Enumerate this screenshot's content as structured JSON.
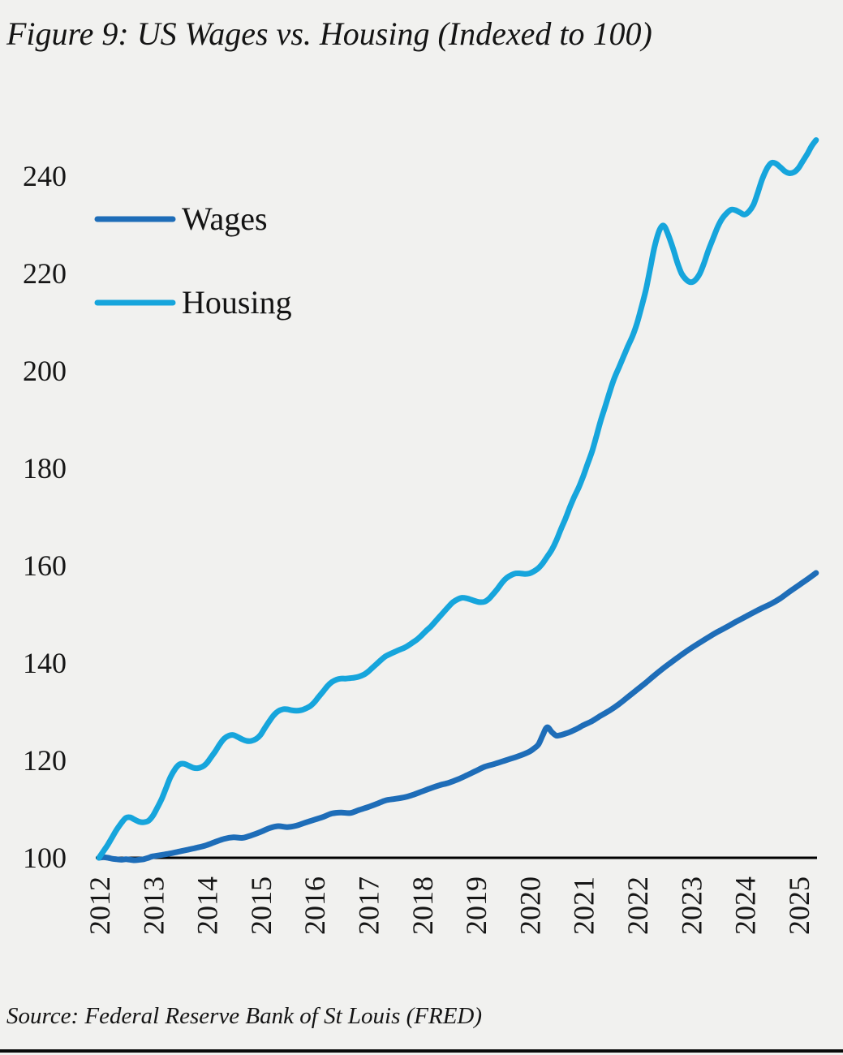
{
  "figure": {
    "title": "Figure 9: US Wages vs. Housing (Indexed to 100)",
    "source": "Source: Federal Reserve Bank of St Louis (FRED)"
  },
  "colors": {
    "background": "#f1f1ef",
    "text": "#161616",
    "axis": "#000000",
    "wages": "#1e6db8",
    "housing": "#16a5dc"
  },
  "chart_data": {
    "type": "line",
    "title": "Figure 9: US Wages vs. Housing (Indexed to 100)",
    "xlabel": "",
    "ylabel": "",
    "grid": false,
    "legend_position": "upper-left",
    "x_tick_rotation": 90,
    "xlim": [
      2012,
      2025.5
    ],
    "ylim": [
      100,
      248
    ],
    "x_tick_values": [
      2012,
      2013,
      2014,
      2015,
      2016,
      2017,
      2018,
      2019,
      2020,
      2021,
      2022,
      2023,
      2024,
      2025
    ],
    "x_tick_labels": [
      "2012",
      "2013",
      "2014",
      "2015",
      "2016",
      "2017",
      "2018",
      "2019",
      "2020",
      "2021",
      "2022",
      "2023",
      "2024",
      "2025"
    ],
    "y_tick_values": [
      100,
      120,
      140,
      160,
      180,
      200,
      220,
      240
    ],
    "series": [
      {
        "name": "Wages",
        "color": "#1e6db8",
        "points": [
          [
            2012.0,
            100.0
          ],
          [
            2012.08,
            100.1
          ],
          [
            2012.17,
            100.0
          ],
          [
            2012.25,
            99.8
          ],
          [
            2012.33,
            99.7
          ],
          [
            2012.42,
            99.6
          ],
          [
            2012.5,
            99.7
          ],
          [
            2012.58,
            99.6
          ],
          [
            2012.67,
            99.5
          ],
          [
            2012.75,
            99.6
          ],
          [
            2012.83,
            99.7
          ],
          [
            2012.92,
            100.0
          ],
          [
            2013.0,
            100.3
          ],
          [
            2013.17,
            100.6
          ],
          [
            2013.33,
            100.9
          ],
          [
            2013.5,
            101.3
          ],
          [
            2013.67,
            101.7
          ],
          [
            2013.83,
            102.1
          ],
          [
            2014.0,
            102.6
          ],
          [
            2014.17,
            103.3
          ],
          [
            2014.33,
            103.9
          ],
          [
            2014.5,
            104.2
          ],
          [
            2014.67,
            104.1
          ],
          [
            2014.83,
            104.6
          ],
          [
            2015.0,
            105.3
          ],
          [
            2015.17,
            106.1
          ],
          [
            2015.33,
            106.5
          ],
          [
            2015.5,
            106.3
          ],
          [
            2015.67,
            106.6
          ],
          [
            2015.83,
            107.2
          ],
          [
            2016.0,
            107.8
          ],
          [
            2016.17,
            108.4
          ],
          [
            2016.33,
            109.1
          ],
          [
            2016.5,
            109.3
          ],
          [
            2016.67,
            109.2
          ],
          [
            2016.83,
            109.8
          ],
          [
            2017.0,
            110.4
          ],
          [
            2017.17,
            111.1
          ],
          [
            2017.33,
            111.8
          ],
          [
            2017.5,
            112.1
          ],
          [
            2017.67,
            112.4
          ],
          [
            2017.83,
            112.9
          ],
          [
            2018.0,
            113.6
          ],
          [
            2018.17,
            114.3
          ],
          [
            2018.33,
            114.9
          ],
          [
            2018.5,
            115.4
          ],
          [
            2018.67,
            116.1
          ],
          [
            2018.83,
            116.9
          ],
          [
            2019.0,
            117.8
          ],
          [
            2019.17,
            118.7
          ],
          [
            2019.33,
            119.2
          ],
          [
            2019.5,
            119.8
          ],
          [
            2019.67,
            120.4
          ],
          [
            2019.83,
            121.0
          ],
          [
            2020.0,
            121.8
          ],
          [
            2020.08,
            122.4
          ],
          [
            2020.17,
            123.3
          ],
          [
            2020.25,
            125.2
          ],
          [
            2020.33,
            126.8
          ],
          [
            2020.42,
            125.8
          ],
          [
            2020.5,
            125.1
          ],
          [
            2020.58,
            125.2
          ],
          [
            2020.67,
            125.5
          ],
          [
            2020.75,
            125.8
          ],
          [
            2020.83,
            126.2
          ],
          [
            2020.92,
            126.7
          ],
          [
            2021.0,
            127.2
          ],
          [
            2021.17,
            128.1
          ],
          [
            2021.33,
            129.2
          ],
          [
            2021.5,
            130.3
          ],
          [
            2021.67,
            131.6
          ],
          [
            2021.83,
            133.0
          ],
          [
            2022.0,
            134.5
          ],
          [
            2022.17,
            136.0
          ],
          [
            2022.33,
            137.5
          ],
          [
            2022.5,
            139.0
          ],
          [
            2022.67,
            140.4
          ],
          [
            2022.83,
            141.7
          ],
          [
            2023.0,
            143.0
          ],
          [
            2023.17,
            144.2
          ],
          [
            2023.33,
            145.3
          ],
          [
            2023.5,
            146.4
          ],
          [
            2023.67,
            147.4
          ],
          [
            2023.83,
            148.4
          ],
          [
            2024.0,
            149.4
          ],
          [
            2024.17,
            150.4
          ],
          [
            2024.33,
            151.3
          ],
          [
            2024.5,
            152.2
          ],
          [
            2024.67,
            153.3
          ],
          [
            2024.83,
            154.6
          ],
          [
            2025.0,
            155.9
          ],
          [
            2025.17,
            157.2
          ],
          [
            2025.33,
            158.5
          ]
        ]
      },
      {
        "name": "Housing",
        "color": "#16a5dc",
        "points": [
          [
            2012.0,
            100.0
          ],
          [
            2012.08,
            101.3
          ],
          [
            2012.17,
            102.8
          ],
          [
            2012.25,
            104.3
          ],
          [
            2012.33,
            105.8
          ],
          [
            2012.42,
            107.2
          ],
          [
            2012.5,
            108.2
          ],
          [
            2012.58,
            108.3
          ],
          [
            2012.67,
            107.8
          ],
          [
            2012.75,
            107.4
          ],
          [
            2012.83,
            107.3
          ],
          [
            2012.92,
            107.6
          ],
          [
            2013.0,
            108.6
          ],
          [
            2013.08,
            110.2
          ],
          [
            2013.17,
            112.2
          ],
          [
            2013.25,
            114.4
          ],
          [
            2013.33,
            116.6
          ],
          [
            2013.42,
            118.3
          ],
          [
            2013.5,
            119.2
          ],
          [
            2013.58,
            119.3
          ],
          [
            2013.67,
            118.9
          ],
          [
            2013.75,
            118.5
          ],
          [
            2013.83,
            118.4
          ],
          [
            2013.92,
            118.7
          ],
          [
            2014.0,
            119.4
          ],
          [
            2014.08,
            120.6
          ],
          [
            2014.17,
            122.0
          ],
          [
            2014.25,
            123.4
          ],
          [
            2014.33,
            124.5
          ],
          [
            2014.42,
            125.1
          ],
          [
            2014.5,
            125.2
          ],
          [
            2014.58,
            124.8
          ],
          [
            2014.67,
            124.3
          ],
          [
            2014.75,
            124.0
          ],
          [
            2014.83,
            124.0
          ],
          [
            2014.92,
            124.4
          ],
          [
            2015.0,
            125.2
          ],
          [
            2015.08,
            126.6
          ],
          [
            2015.17,
            128.1
          ],
          [
            2015.25,
            129.3
          ],
          [
            2015.33,
            130.1
          ],
          [
            2015.42,
            130.5
          ],
          [
            2015.5,
            130.5
          ],
          [
            2015.58,
            130.3
          ],
          [
            2015.67,
            130.2
          ],
          [
            2015.75,
            130.3
          ],
          [
            2015.83,
            130.6
          ],
          [
            2015.92,
            131.1
          ],
          [
            2016.0,
            131.9
          ],
          [
            2016.08,
            133.0
          ],
          [
            2016.17,
            134.2
          ],
          [
            2016.25,
            135.3
          ],
          [
            2016.33,
            136.1
          ],
          [
            2016.42,
            136.6
          ],
          [
            2016.5,
            136.8
          ],
          [
            2016.58,
            136.8
          ],
          [
            2016.67,
            136.9
          ],
          [
            2016.75,
            137.0
          ],
          [
            2016.83,
            137.2
          ],
          [
            2016.92,
            137.6
          ],
          [
            2017.0,
            138.2
          ],
          [
            2017.08,
            139.0
          ],
          [
            2017.17,
            139.9
          ],
          [
            2017.25,
            140.7
          ],
          [
            2017.33,
            141.4
          ],
          [
            2017.42,
            141.9
          ],
          [
            2017.5,
            142.3
          ],
          [
            2017.58,
            142.7
          ],
          [
            2017.67,
            143.1
          ],
          [
            2017.75,
            143.6
          ],
          [
            2017.83,
            144.2
          ],
          [
            2017.92,
            144.9
          ],
          [
            2018.0,
            145.7
          ],
          [
            2018.08,
            146.6
          ],
          [
            2018.17,
            147.5
          ],
          [
            2018.25,
            148.5
          ],
          [
            2018.33,
            149.5
          ],
          [
            2018.42,
            150.6
          ],
          [
            2018.5,
            151.6
          ],
          [
            2018.58,
            152.5
          ],
          [
            2018.67,
            153.1
          ],
          [
            2018.75,
            153.4
          ],
          [
            2018.83,
            153.3
          ],
          [
            2018.92,
            153.0
          ],
          [
            2019.0,
            152.7
          ],
          [
            2019.08,
            152.5
          ],
          [
            2019.17,
            152.6
          ],
          [
            2019.25,
            153.2
          ],
          [
            2019.33,
            154.2
          ],
          [
            2019.42,
            155.4
          ],
          [
            2019.5,
            156.6
          ],
          [
            2019.58,
            157.5
          ],
          [
            2019.67,
            158.1
          ],
          [
            2019.75,
            158.4
          ],
          [
            2019.83,
            158.4
          ],
          [
            2019.92,
            158.3
          ],
          [
            2020.0,
            158.4
          ],
          [
            2020.08,
            158.8
          ],
          [
            2020.17,
            159.5
          ],
          [
            2020.25,
            160.5
          ],
          [
            2020.33,
            161.8
          ],
          [
            2020.42,
            163.3
          ],
          [
            2020.5,
            165.1
          ],
          [
            2020.58,
            167.3
          ],
          [
            2020.67,
            169.6
          ],
          [
            2020.75,
            171.9
          ],
          [
            2020.83,
            174.0
          ],
          [
            2020.92,
            176.1
          ],
          [
            2021.0,
            178.3
          ],
          [
            2021.08,
            180.8
          ],
          [
            2021.17,
            183.6
          ],
          [
            2021.25,
            186.7
          ],
          [
            2021.33,
            189.9
          ],
          [
            2021.42,
            193.0
          ],
          [
            2021.5,
            195.9
          ],
          [
            2021.58,
            198.5
          ],
          [
            2021.67,
            200.8
          ],
          [
            2021.75,
            202.9
          ],
          [
            2021.83,
            205.0
          ],
          [
            2021.92,
            207.2
          ],
          [
            2022.0,
            209.7
          ],
          [
            2022.08,
            212.9
          ],
          [
            2022.17,
            216.8
          ],
          [
            2022.25,
            221.2
          ],
          [
            2022.33,
            225.6
          ],
          [
            2022.42,
            228.9
          ],
          [
            2022.5,
            229.8
          ],
          [
            2022.58,
            228.0
          ],
          [
            2022.67,
            225.2
          ],
          [
            2022.75,
            222.3
          ],
          [
            2022.83,
            220.0
          ],
          [
            2022.92,
            218.7
          ],
          [
            2023.0,
            218.2
          ],
          [
            2023.08,
            218.6
          ],
          [
            2023.17,
            220.0
          ],
          [
            2023.25,
            222.2
          ],
          [
            2023.33,
            224.8
          ],
          [
            2023.42,
            227.3
          ],
          [
            2023.5,
            229.5
          ],
          [
            2023.58,
            231.2
          ],
          [
            2023.67,
            232.4
          ],
          [
            2023.75,
            233.1
          ],
          [
            2023.83,
            233.0
          ],
          [
            2023.92,
            232.5
          ],
          [
            2024.0,
            232.1
          ],
          [
            2024.08,
            232.7
          ],
          [
            2024.17,
            234.2
          ],
          [
            2024.25,
            236.7
          ],
          [
            2024.33,
            239.4
          ],
          [
            2024.42,
            241.6
          ],
          [
            2024.5,
            242.7
          ],
          [
            2024.58,
            242.6
          ],
          [
            2024.67,
            241.8
          ],
          [
            2024.75,
            241.0
          ],
          [
            2024.83,
            240.6
          ],
          [
            2024.92,
            240.8
          ],
          [
            2025.0,
            241.6
          ],
          [
            2025.08,
            243.0
          ],
          [
            2025.17,
            244.6
          ],
          [
            2025.25,
            246.2
          ],
          [
            2025.33,
            247.4
          ]
        ]
      }
    ]
  }
}
